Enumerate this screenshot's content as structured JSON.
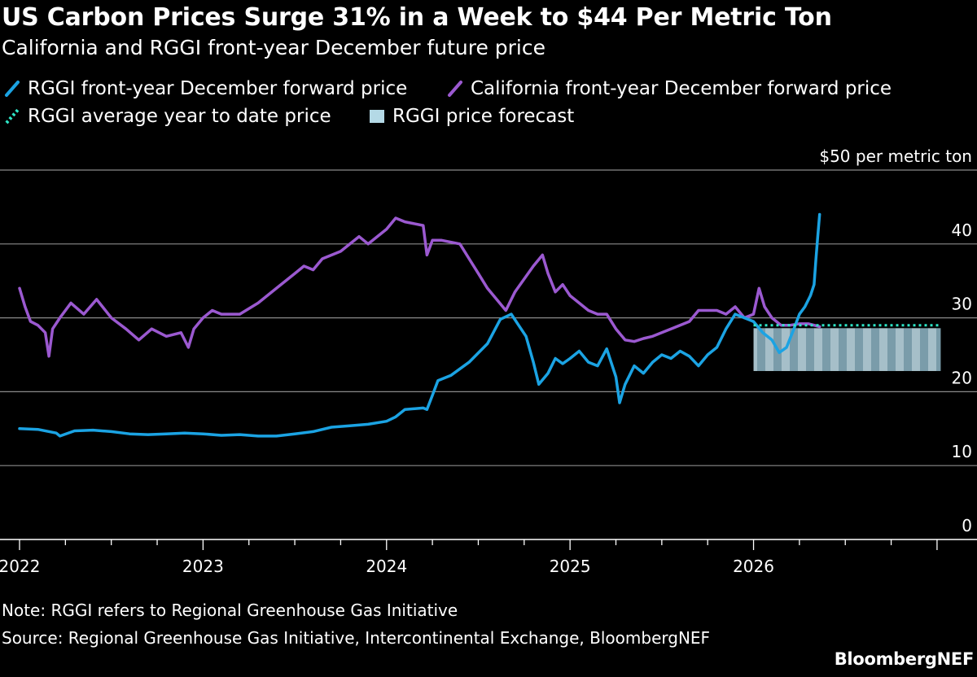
{
  "chart_data": {
    "type": "line",
    "title": "US Carbon Prices Surge 31% in a Week to $44 Per Metric Ton",
    "subtitle": "California and RGGI front-year December future price",
    "unit_label": "$50 per metric ton",
    "ylim": [
      0,
      50
    ],
    "xlim": [
      2022.0,
      2027.2
    ],
    "y_ticks": [
      {
        "value": 50,
        "label": "$50 per metric ton"
      },
      {
        "value": 40,
        "label": "40"
      },
      {
        "value": 30,
        "label": "30"
      },
      {
        "value": 20,
        "label": "20"
      },
      {
        "value": 10,
        "label": "10"
      },
      {
        "value": 0,
        "label": "0"
      }
    ],
    "x_ticks": [
      {
        "value": 2022,
        "label": "2022"
      },
      {
        "value": 2023,
        "label": "2023"
      },
      {
        "value": 2024,
        "label": "2024"
      },
      {
        "value": 2025,
        "label": "2025"
      },
      {
        "value": 2026,
        "label": "2026"
      }
    ],
    "grid": true,
    "legend_position": "top-left",
    "series": [
      {
        "name": "RGGI front-year December forward price",
        "color": "#1ba3e3",
        "kind": "line",
        "points": [
          [
            2022.0,
            15.0
          ],
          [
            2022.1,
            14.9
          ],
          [
            2022.2,
            14.4
          ],
          [
            2022.22,
            14.0
          ],
          [
            2022.3,
            14.7
          ],
          [
            2022.4,
            14.8
          ],
          [
            2022.5,
            14.6
          ],
          [
            2022.6,
            14.3
          ],
          [
            2022.7,
            14.2
          ],
          [
            2022.8,
            14.3
          ],
          [
            2022.9,
            14.4
          ],
          [
            2023.0,
            14.3
          ],
          [
            2023.1,
            14.1
          ],
          [
            2023.2,
            14.2
          ],
          [
            2023.3,
            14.0
          ],
          [
            2023.4,
            14.0
          ],
          [
            2023.5,
            14.3
          ],
          [
            2023.6,
            14.6
          ],
          [
            2023.7,
            15.2
          ],
          [
            2023.8,
            15.4
          ],
          [
            2023.9,
            15.6
          ],
          [
            2024.0,
            16.0
          ],
          [
            2024.05,
            16.6
          ],
          [
            2024.1,
            17.6
          ],
          [
            2024.2,
            17.8
          ],
          [
            2024.22,
            17.6
          ],
          [
            2024.25,
            19.5
          ],
          [
            2024.28,
            21.5
          ],
          [
            2024.35,
            22.2
          ],
          [
            2024.45,
            24.0
          ],
          [
            2024.55,
            26.5
          ],
          [
            2024.62,
            29.8
          ],
          [
            2024.68,
            30.5
          ],
          [
            2024.72,
            29.0
          ],
          [
            2024.76,
            27.5
          ],
          [
            2024.8,
            24.0
          ],
          [
            2024.83,
            21.0
          ],
          [
            2024.88,
            22.5
          ],
          [
            2024.92,
            24.5
          ],
          [
            2024.96,
            23.8
          ],
          [
            2025.0,
            24.5
          ],
          [
            2025.05,
            25.5
          ],
          [
            2025.1,
            24.0
          ],
          [
            2025.15,
            23.5
          ],
          [
            2025.2,
            25.8
          ],
          [
            2025.25,
            22.0
          ],
          [
            2025.27,
            18.5
          ],
          [
            2025.3,
            21.0
          ],
          [
            2025.35,
            23.5
          ],
          [
            2025.4,
            22.5
          ],
          [
            2025.45,
            24.0
          ],
          [
            2025.5,
            25.0
          ],
          [
            2025.55,
            24.5
          ],
          [
            2025.6,
            25.5
          ],
          [
            2025.65,
            24.8
          ],
          [
            2025.7,
            23.5
          ],
          [
            2025.75,
            25.0
          ],
          [
            2025.8,
            26.0
          ],
          [
            2025.85,
            28.5
          ],
          [
            2025.9,
            30.5
          ],
          [
            2025.95,
            30.0
          ],
          [
            2026.0,
            29.5
          ],
          [
            2026.05,
            28.0
          ],
          [
            2026.1,
            27.0
          ],
          [
            2026.14,
            25.3
          ],
          [
            2026.18,
            26.0
          ],
          [
            2026.22,
            28.5
          ],
          [
            2026.25,
            30.5
          ],
          [
            2026.28,
            31.5
          ],
          [
            2026.31,
            33.0
          ],
          [
            2026.33,
            34.5
          ],
          [
            2026.34,
            38.0
          ],
          [
            2026.35,
            41.0
          ],
          [
            2026.36,
            44.0
          ]
        ]
      },
      {
        "name": "California front-year December forward price",
        "color": "#9b59d0",
        "kind": "line",
        "points": [
          [
            2022.0,
            34.0
          ],
          [
            2022.03,
            31.5
          ],
          [
            2022.06,
            29.5
          ],
          [
            2022.1,
            29.0
          ],
          [
            2022.14,
            28.0
          ],
          [
            2022.16,
            24.8
          ],
          [
            2022.18,
            28.5
          ],
          [
            2022.22,
            30.0
          ],
          [
            2022.28,
            32.0
          ],
          [
            2022.35,
            30.5
          ],
          [
            2022.42,
            32.5
          ],
          [
            2022.5,
            30.0
          ],
          [
            2022.58,
            28.5
          ],
          [
            2022.65,
            27.0
          ],
          [
            2022.72,
            28.5
          ],
          [
            2022.8,
            27.5
          ],
          [
            2022.88,
            28.0
          ],
          [
            2022.92,
            26.0
          ],
          [
            2022.95,
            28.5
          ],
          [
            2023.0,
            30.0
          ],
          [
            2023.05,
            31.0
          ],
          [
            2023.1,
            30.5
          ],
          [
            2023.2,
            30.5
          ],
          [
            2023.3,
            32.0
          ],
          [
            2023.4,
            34.0
          ],
          [
            2023.5,
            36.0
          ],
          [
            2023.55,
            37.0
          ],
          [
            2023.6,
            36.5
          ],
          [
            2023.65,
            38.0
          ],
          [
            2023.75,
            39.0
          ],
          [
            2023.85,
            41.0
          ],
          [
            2023.9,
            40.0
          ],
          [
            2024.0,
            42.0
          ],
          [
            2024.05,
            43.5
          ],
          [
            2024.1,
            43.0
          ],
          [
            2024.2,
            42.5
          ],
          [
            2024.22,
            38.5
          ],
          [
            2024.25,
            40.5
          ],
          [
            2024.3,
            40.5
          ],
          [
            2024.4,
            40.0
          ],
          [
            2024.45,
            38.0
          ],
          [
            2024.5,
            36.0
          ],
          [
            2024.55,
            34.0
          ],
          [
            2024.6,
            32.5
          ],
          [
            2024.65,
            31.0
          ],
          [
            2024.7,
            33.5
          ],
          [
            2024.8,
            37.0
          ],
          [
            2024.85,
            38.5
          ],
          [
            2024.88,
            36.0
          ],
          [
            2024.92,
            33.5
          ],
          [
            2024.96,
            34.5
          ],
          [
            2025.0,
            33.0
          ],
          [
            2025.05,
            32.0
          ],
          [
            2025.1,
            31.0
          ],
          [
            2025.15,
            30.5
          ],
          [
            2025.2,
            30.5
          ],
          [
            2025.25,
            28.5
          ],
          [
            2025.3,
            27.0
          ],
          [
            2025.35,
            26.8
          ],
          [
            2025.4,
            27.2
          ],
          [
            2025.45,
            27.5
          ],
          [
            2025.5,
            28.0
          ],
          [
            2025.55,
            28.5
          ],
          [
            2025.65,
            29.5
          ],
          [
            2025.7,
            31.0
          ],
          [
            2025.8,
            31.0
          ],
          [
            2025.85,
            30.5
          ],
          [
            2025.9,
            31.5
          ],
          [
            2025.95,
            30.0
          ],
          [
            2026.0,
            30.5
          ],
          [
            2026.03,
            34.0
          ],
          [
            2026.06,
            31.5
          ],
          [
            2026.1,
            30.0
          ],
          [
            2026.15,
            29.0
          ],
          [
            2026.2,
            29.0
          ],
          [
            2026.25,
            29.2
          ],
          [
            2026.3,
            29.2
          ],
          [
            2026.36,
            28.8
          ]
        ]
      },
      {
        "name": "RGGI average year to date price",
        "color": "#2ee6c7",
        "kind": "dotted",
        "points": [
          [
            2026.0,
            29.0
          ],
          [
            2027.02,
            29.0
          ]
        ]
      }
    ],
    "band": {
      "name": "RGGI price forecast",
      "color": "#b4d9e6",
      "x": [
        2026.0,
        2027.02
      ],
      "y": [
        22.8,
        28.6
      ]
    },
    "note": "Note: RGGI refers to Regional Greenhouse Gas Initiative",
    "source": "Source: Regional Greenhouse Gas Initiative, Intercontinental Exchange, BloombergNEF"
  },
  "branding": "BloombergNEF"
}
